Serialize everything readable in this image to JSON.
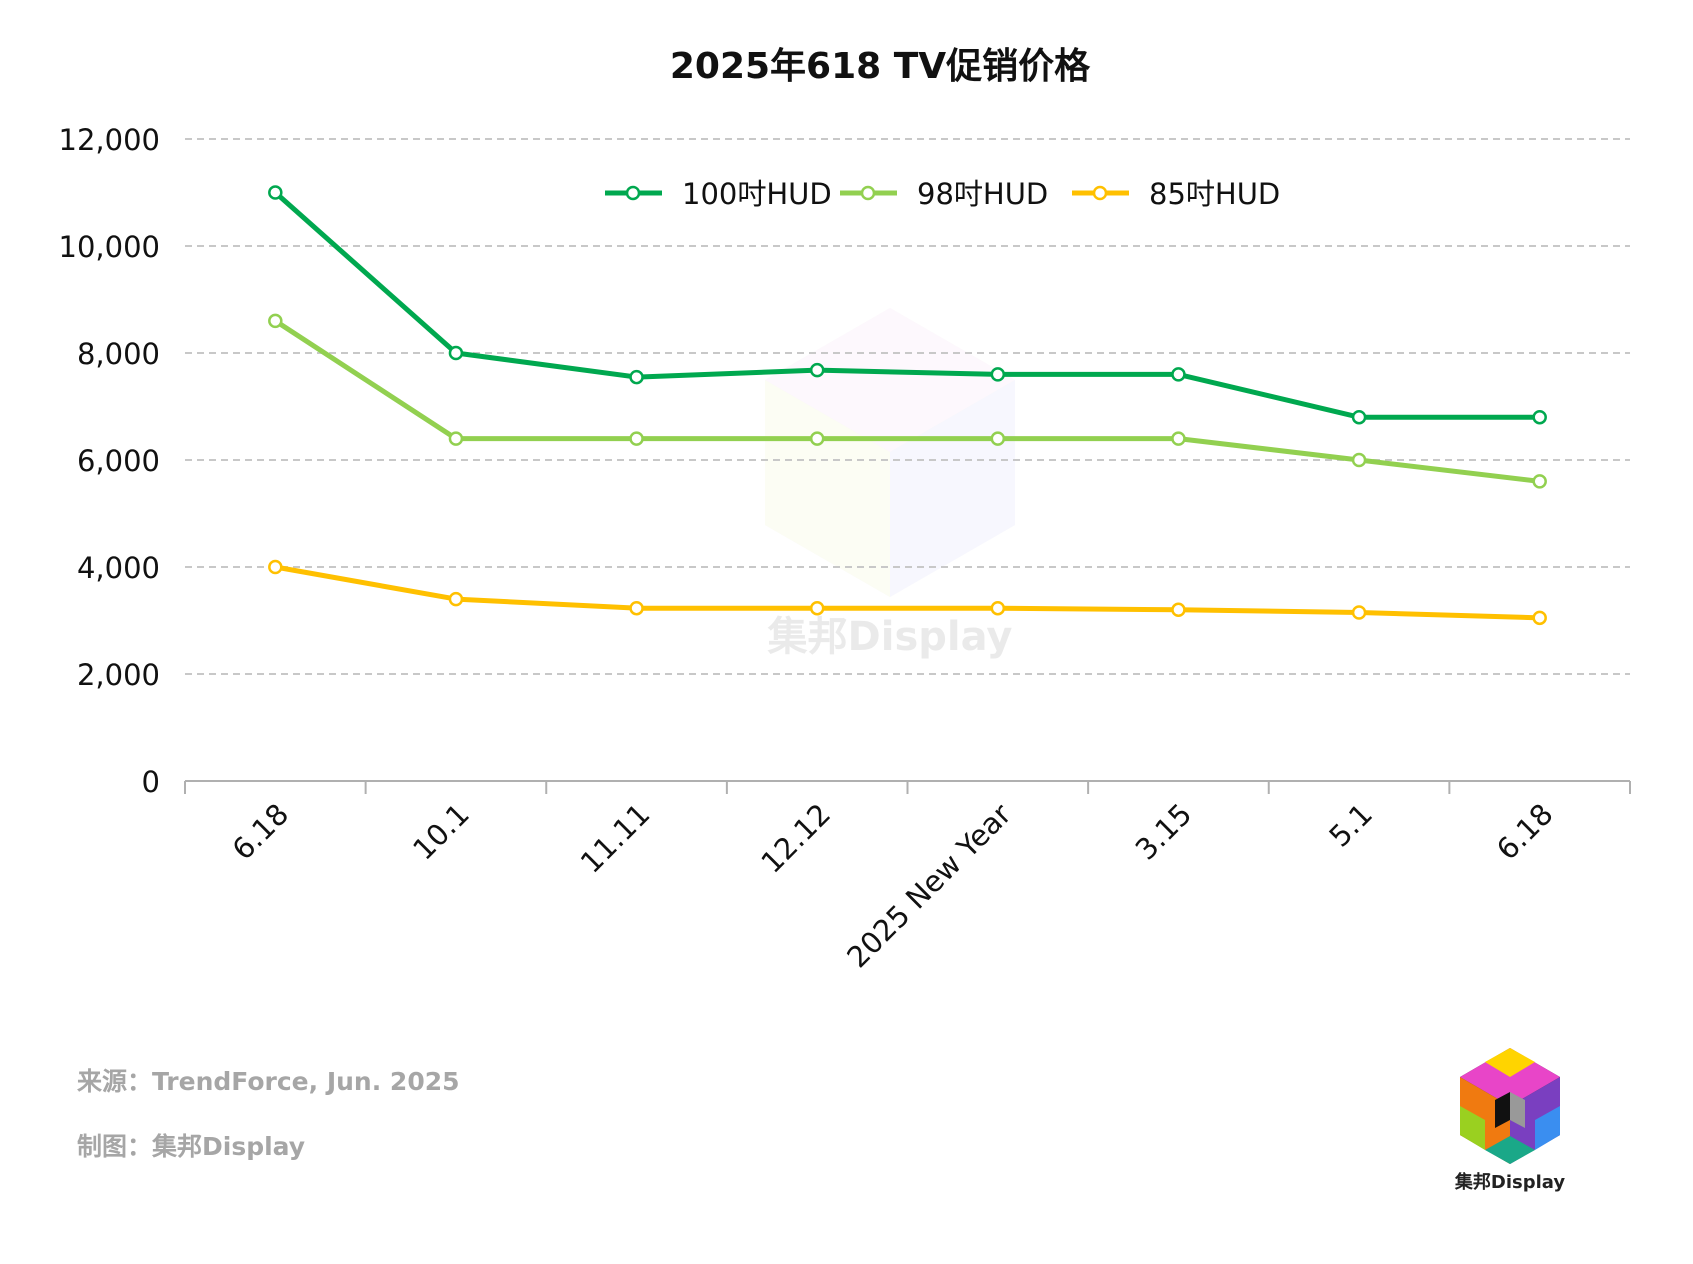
{
  "chart_data": {
    "type": "line",
    "title": "2025年618 TV促销价格",
    "categories": [
      "6.18",
      "10.1",
      "11.11",
      "12.12",
      "2025 New Year",
      "3.15",
      "5.1",
      "6.18"
    ],
    "series": [
      {
        "name": "100吋HUD",
        "color": "#00a84f",
        "values": [
          11000,
          8000,
          7550,
          7680,
          7600,
          7600,
          6800,
          6800
        ]
      },
      {
        "name": "98吋HUD",
        "color": "#92d050",
        "values": [
          8600,
          6400,
          6400,
          6400,
          6400,
          6400,
          6000,
          5600
        ]
      },
      {
        "name": "85吋HUD",
        "color": "#ffc000",
        "values": [
          4000,
          3400,
          3230,
          3230,
          3230,
          3200,
          3150,
          3050
        ]
      }
    ],
    "ylim": [
      0,
      12000
    ],
    "yticks": [
      "0",
      "2,000",
      "4,000",
      "6,000",
      "8,000",
      "10,000",
      "12,000"
    ],
    "grid": true,
    "legend_position": "top"
  },
  "watermark": "集邦Display",
  "footer": {
    "source": "来源：TrendForce, Jun. 2025",
    "credit": "制图：集邦Display"
  },
  "logo": {
    "caption": "集邦Display"
  }
}
